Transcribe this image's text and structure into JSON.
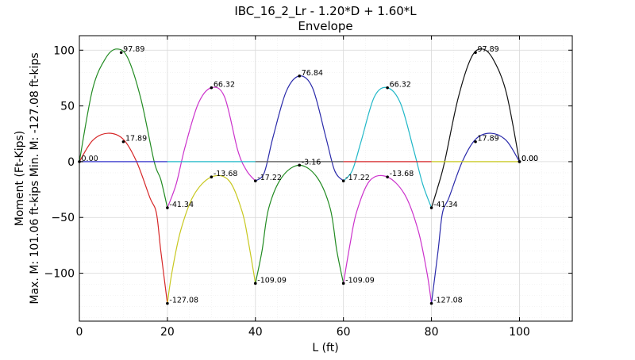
{
  "chart_data": {
    "type": "line",
    "title_lines": [
      "IBC_16_2_Lr -  1.20*D + 1.60*L",
      "Envelope"
    ],
    "xlabel": "L (ft)",
    "ylabel_lines": [
      "Max. M: 101.06 ft-kips  Min. M: -127.08 ft-kips",
      "Moment (Ft-Kips)"
    ],
    "xlim": [
      0,
      112
    ],
    "ylim": [
      -143,
      113
    ],
    "xticks": [
      0,
      20,
      40,
      60,
      80,
      100
    ],
    "yticks": [
      -100,
      -50,
      0,
      50,
      100
    ],
    "xtick_labels": [
      "0",
      "20",
      "40",
      "60",
      "80",
      "100"
    ],
    "ytick_labels": [
      "−100",
      "−50",
      "0",
      "50",
      "100"
    ],
    "grid": true,
    "series": [
      {
        "color": "#d62728",
        "x": [
          0,
          3,
          6.5,
          10,
          13,
          16,
          17.5,
          18.5,
          20
        ],
        "y": [
          0,
          19,
          25.5,
          20,
          0,
          -32,
          -46,
          -80,
          -127.08
        ]
      },
      {
        "color": "#228b22",
        "x": [
          0,
          3,
          6,
          8.5,
          11,
          14,
          17,
          18.5,
          20
        ],
        "y": [
          0,
          65,
          93,
          101.06,
          93,
          56,
          0,
          -16,
          -41.34
        ]
      },
      {
        "color": "#3333cc",
        "x": [
          0,
          20
        ],
        "y": [
          0,
          0
        ]
      },
      {
        "color": "#cc33cc",
        "x": [
          20,
          22,
          24,
          27,
          30,
          33,
          36,
          38,
          40
        ],
        "y": [
          -41.34,
          -20,
          13,
          52,
          66.32,
          58,
          10,
          -8,
          -17.22
        ]
      },
      {
        "color": "#c8c820",
        "x": [
          20,
          21,
          23,
          26,
          30,
          34,
          37,
          38.5,
          40
        ],
        "y": [
          -127.08,
          -100,
          -62,
          -30,
          -13.68,
          -17,
          -45,
          -74,
          -109.09
        ]
      },
      {
        "color": "#22b8c8",
        "x": [
          20,
          40
        ],
        "y": [
          0,
          0
        ]
      },
      {
        "color": "#2a2aaa",
        "x": [
          40,
          42,
          44,
          47,
          50,
          53,
          56,
          58,
          60
        ],
        "y": [
          -17.22,
          -10,
          22,
          63,
          76.84,
          66,
          22,
          -8,
          -17.22
        ]
      },
      {
        "color": "#228b22",
        "x": [
          40,
          41.5,
          43,
          46,
          50,
          54,
          57,
          58.5,
          60
        ],
        "y": [
          -109.09,
          -80,
          -42,
          -14,
          -3.16,
          -14,
          -42,
          -80,
          -109.09
        ]
      },
      {
        "color": "#555555",
        "x": [
          40,
          60
        ],
        "y": [
          0,
          0
        ]
      },
      {
        "color": "#22b8c8",
        "x": [
          60,
          62,
          64,
          67,
          70,
          73,
          76,
          78,
          80
        ],
        "y": [
          -17.22,
          -8,
          18,
          58,
          66.32,
          52,
          10,
          -20,
          -41.34
        ]
      },
      {
        "color": "#cc33cc",
        "x": [
          60,
          61.5,
          63,
          66,
          70,
          74,
          77,
          79,
          80
        ],
        "y": [
          -109.09,
          -74,
          -45,
          -17,
          -13.68,
          -30,
          -62,
          -100,
          -127.08
        ]
      },
      {
        "color": "#d62728",
        "x": [
          60,
          80
        ],
        "y": [
          0,
          0
        ]
      },
      {
        "color": "#111111",
        "x": [
          80,
          81.5,
          83,
          86,
          89,
          91.5,
          94,
          97,
          100
        ],
        "y": [
          -41.34,
          -22,
          0,
          56,
          93,
          101.06,
          92,
          62,
          0
        ]
      },
      {
        "color": "#2a2aaa",
        "x": [
          80,
          81.5,
          82.5,
          84,
          87,
          90,
          93.5,
          97,
          100
        ],
        "y": [
          -127.08,
          -80,
          -46,
          -32,
          0,
          20,
          25.5,
          19,
          0
        ]
      },
      {
        "color": "#c8c820",
        "x": [
          80,
          100
        ],
        "y": [
          0,
          0
        ]
      }
    ],
    "annotations": [
      {
        "x": 0,
        "y": 0,
        "text": "0.00"
      },
      {
        "x": 9.5,
        "y": 97.89,
        "text": "97.89"
      },
      {
        "x": 10,
        "y": 17.89,
        "text": "17.89"
      },
      {
        "x": 20,
        "y": -41.34,
        "text": "-41.34"
      },
      {
        "x": 20,
        "y": -127.08,
        "text": "-127.08"
      },
      {
        "x": 30,
        "y": 66.32,
        "text": "66.32"
      },
      {
        "x": 30,
        "y": -13.68,
        "text": "-13.68"
      },
      {
        "x": 40,
        "y": -17.22,
        "text": "-17.22"
      },
      {
        "x": 40,
        "y": -109.09,
        "text": "-109.09"
      },
      {
        "x": 50,
        "y": 76.84,
        "text": "76.84"
      },
      {
        "x": 50,
        "y": -3.16,
        "text": "-3.16"
      },
      {
        "x": 60,
        "y": -17.22,
        "text": "-17.22"
      },
      {
        "x": 60,
        "y": -109.09,
        "text": "-109.09"
      },
      {
        "x": 70,
        "y": 66.32,
        "text": "66.32"
      },
      {
        "x": 70,
        "y": -13.68,
        "text": "-13.68"
      },
      {
        "x": 80,
        "y": -41.34,
        "text": "-41.34"
      },
      {
        "x": 80,
        "y": -127.08,
        "text": "-127.08"
      },
      {
        "x": 90,
        "y": 97.89,
        "text": "97.89"
      },
      {
        "x": 90,
        "y": 17.89,
        "text": "17.89"
      },
      {
        "x": 100,
        "y": 0,
        "text": "0.00"
      },
      {
        "x": 100,
        "y": 0,
        "text": "0.00"
      }
    ]
  }
}
